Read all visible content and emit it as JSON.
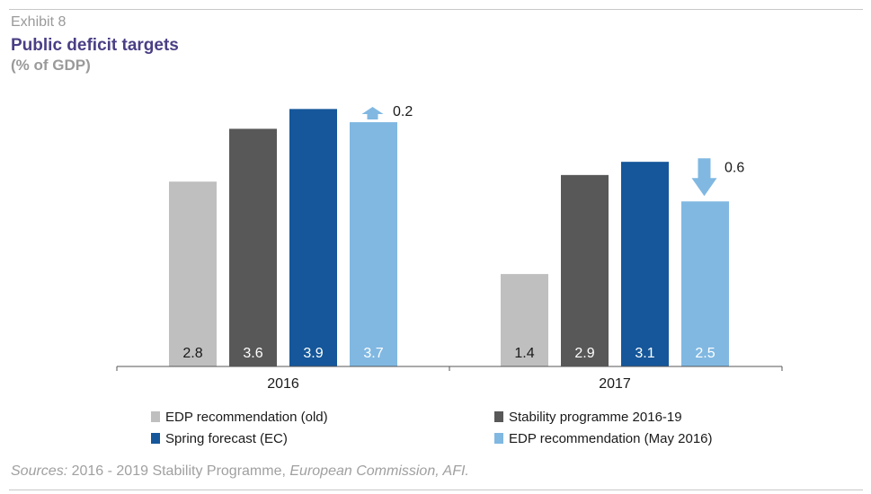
{
  "header": {
    "exhibit": "Exhibit 8",
    "title": "Public deficit targets",
    "subtitle": "(% of GDP)"
  },
  "chart_data": {
    "type": "bar",
    "categories": [
      "2016",
      "2017"
    ],
    "series": [
      {
        "name": "EDP recommendation (old)",
        "values": [
          2.8,
          1.4
        ],
        "color": "#bfbfbf"
      },
      {
        "name": "Stability programme 2016-19",
        "values": [
          3.6,
          2.9
        ],
        "color": "#585858"
      },
      {
        "name": "Spring forecast (EC)",
        "values": [
          3.9,
          3.1
        ],
        "color": "#15579a"
      },
      {
        "name": "EDP recommendation (May 2016)",
        "values": [
          3.7,
          2.5
        ],
        "color": "#80b8e2"
      }
    ],
    "value_labels": [
      [
        "2.8",
        "1.4"
      ],
      [
        "3.6",
        "2.9"
      ],
      [
        "3.9",
        "3.1"
      ],
      [
        "3.7",
        "2.5"
      ]
    ],
    "annotations": [
      {
        "category": "2016",
        "series": "EDP recommendation (May 2016)",
        "direction": "up",
        "value": 0.2,
        "text": "0.2"
      },
      {
        "category": "2017",
        "series": "EDP recommendation (May 2016)",
        "direction": "down",
        "value": 0.6,
        "text": "0.6"
      }
    ],
    "ylim": [
      0,
      4.2
    ],
    "grid": false,
    "legend_position": "bottom"
  },
  "legend": {
    "items": [
      {
        "label": "EDP recommendation (old)",
        "color": "#bfbfbf"
      },
      {
        "label": "Stability programme 2016-19",
        "color": "#585858"
      },
      {
        "label": "Spring forecast (EC)",
        "color": "#15579a"
      },
      {
        "label": "EDP recommendation (May 2016)",
        "color": "#80b8e2"
      }
    ]
  },
  "footer": {
    "sources_prefix": "Sources:",
    "sources_middle": " 2016 - 2019 Stability Programme, ",
    "sources_suffix": "European Commission, AFI."
  }
}
